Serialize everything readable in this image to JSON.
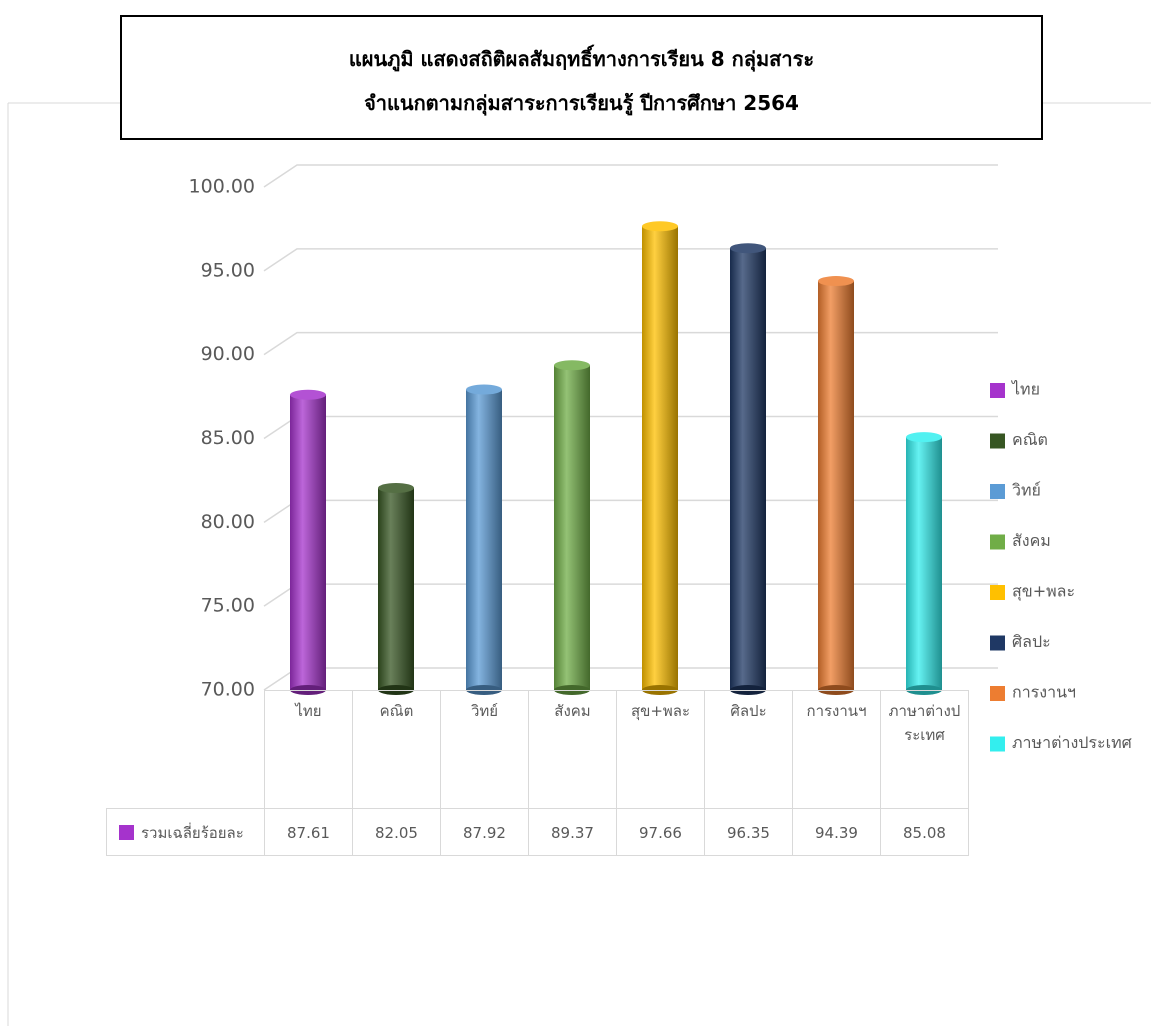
{
  "chart_data": {
    "type": "bar",
    "title": [
      "แผนภูมิ แสดงสถิติผลสัมฤทธิ์ทางการเรียน 8 กลุ่มสาระ",
      "จำแนกตามกลุ่มสาระการเรียนรู้ ปีการศึกษา 2564"
    ],
    "categories": [
      "ไทย",
      "คณิต",
      "วิทย์",
      "สังคม",
      "สุข+พละ",
      "ศิลปะ",
      "การงานฯ",
      "ภาษาต่างประเทศ"
    ],
    "series": [
      {
        "name": "รวมเฉลี่ยร้อยละ",
        "color": "#a533cc",
        "values": [
          87.61,
          82.05,
          87.92,
          89.37,
          97.66,
          96.35,
          94.39,
          85.08
        ]
      }
    ],
    "colors": [
      "#a533cc",
      "#375623",
      "#5b9bd5",
      "#70ad47",
      "#ffc000",
      "#1f3864",
      "#ed7d31",
      "#33eeee"
    ],
    "ylim": [
      70,
      100
    ],
    "yticks": [
      {
        "value": 70,
        "label": "70.00"
      },
      {
        "value": 75,
        "label": "75.00"
      },
      {
        "value": 80,
        "label": "80.00"
      },
      {
        "value": 85,
        "label": "85.00"
      },
      {
        "value": 90,
        "label": "90.00"
      },
      {
        "value": 95,
        "label": "95.00"
      },
      {
        "value": 100,
        "label": "100.00"
      }
    ],
    "grid": true,
    "legend": "right",
    "data_table": true
  }
}
